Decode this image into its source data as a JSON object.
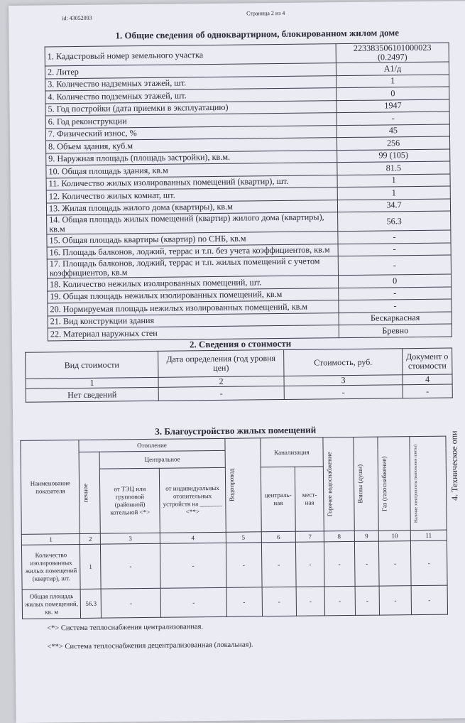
{
  "header": {
    "id": "id: 43052093",
    "page": "Страница 2 из 4"
  },
  "section1": {
    "title": "1. Общие сведения об одноквартирном, блокированном жилом доме",
    "rows": [
      {
        "label": "1. Кадастровый номер земельного участка",
        "value": "223383506101000023 (0.2497)"
      },
      {
        "label": "2. Литер",
        "value": "А1/д"
      },
      {
        "label": "3. Количество надземных этажей, шт.",
        "value": "1"
      },
      {
        "label": "4. Количество подземных этажей, шт.",
        "value": "0"
      },
      {
        "label": "5. Год постройки (дата приемки в эксплуатацию)",
        "value": "1947"
      },
      {
        "label": "6. Год реконструкции",
        "value": "-"
      },
      {
        "label": "7. Физический износ, %",
        "value": "45"
      },
      {
        "label": "8. Объем здания, куб.м",
        "value": "256"
      },
      {
        "label": "9. Наружная площадь (площадь застройки), кв.м.",
        "value": "99 (105)"
      },
      {
        "label": "10. Общая площадь здания, кв.м",
        "value": "81.5"
      },
      {
        "label": "11. Количество жилых изолированных помещений (квартир), шт.",
        "value": "1"
      },
      {
        "label": "12. Количество жилых комнат, шт.",
        "value": "1"
      },
      {
        "label": "13. Жилая площадь жилого дома (квартиры), кв.м",
        "value": "34.7"
      },
      {
        "label": "14. Общая площадь жилых помещений (квартир) жилого дома (квартиры), кв.м",
        "value": "56.3"
      },
      {
        "label": "15. Общая площадь квартиры (квартир) по СНБ, кв.м",
        "value": "-"
      },
      {
        "label": "16. Площадь балконов, лоджий, террас и т.п. без учета коэффициентов, кв.м",
        "value": "-"
      },
      {
        "label": "17. Площадь балконов, лоджий, террас и т.п. жилых помещений с учетом коэффициентов, кв.м",
        "value": "-"
      },
      {
        "label": "18. Количество нежилых изолированных помещений, шт.",
        "value": "0"
      },
      {
        "label": "19. Общая площадь нежилых изолированных помещений, кв.м",
        "value": "-"
      },
      {
        "label": "20. Нормируемая площадь нежилых изолированных помещений, кв.м",
        "value": "-"
      },
      {
        "label": "21. Вид конструкции здания",
        "value": "Бескаркасная"
      },
      {
        "label": "22. Материал наружных стен",
        "value": "Бревно"
      }
    ]
  },
  "section2": {
    "title": "2. Сведения о стоимости",
    "headers": [
      "Вид стоимости",
      "Дата определения (год уровня цен)",
      "Стоимость, руб.",
      "Документ о стоимости"
    ],
    "numbers": [
      "1",
      "2",
      "3",
      "4"
    ],
    "row": [
      "Нет сведений",
      "-",
      "-",
      "-"
    ]
  },
  "section3": {
    "title": "3. Благоустройство жилых помещений",
    "h_name": "Наименование показателя",
    "h_heating": "Отопление",
    "h_stove": "печное",
    "h_central": "Центральное",
    "h_tec": "от ТЭЦ или групповой (районной) котельной <*>",
    "h_indiv": "от индивидуальных отопительных устройств на _______ <**>",
    "h_water": "Водопровод",
    "h_sewer": "Канализация",
    "h_sewer_c": "централь-ная",
    "h_sewer_l": "мест-ная",
    "h_hotwater": "Горячее водоснабжение",
    "h_bath": "Ванны (души)",
    "h_gas": "Газ (газоснабжение)",
    "h_electro": "Наличие электроплиты (напольные плиты)",
    "numbers": [
      "1",
      "2",
      "3",
      "4",
      "5",
      "6",
      "7",
      "8",
      "9",
      "10",
      "11"
    ],
    "rows": [
      {
        "label": "Количество изолированных жилых помещений (квартир), шт.",
        "values": [
          "1",
          "-",
          "-",
          "-",
          "-",
          "-",
          "-",
          "-",
          "-",
          "-"
        ]
      },
      {
        "label": "Общая площадь жилых помещений, кв. м",
        "values": [
          "56.3",
          "-",
          "-",
          "-",
          "-",
          "-",
          "-",
          "-",
          "-",
          "-"
        ]
      }
    ],
    "side_title": "4. Техническое опи"
  },
  "footnotes": [
    "<*> Система теплоснабжения централизованная.",
    "<**> Система теплоснабжения децентрализованная (локальная)."
  ]
}
